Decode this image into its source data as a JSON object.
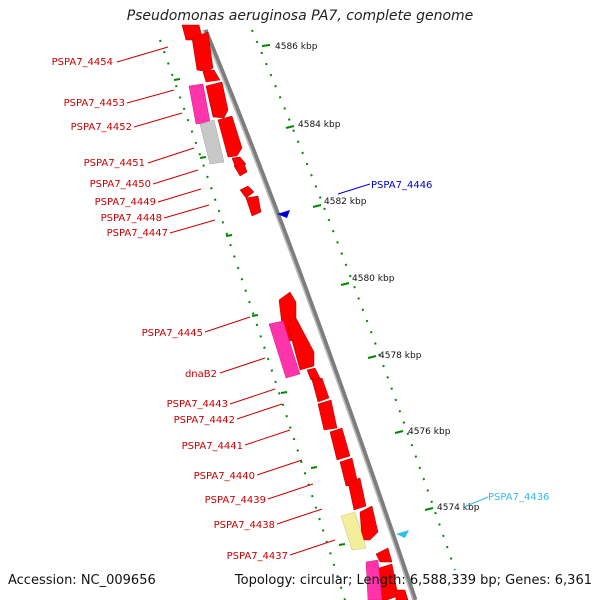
{
  "title": "Pseudomonas aeruginosa PA7, complete genome",
  "footer": {
    "accession": "Accession: NC_009656",
    "topology": "Topology: circular; Length: 6,588,339 bp; Genes: 6,361"
  },
  "colors": {
    "backbone": "#8a8a8a",
    "cds": "#ff0000",
    "gene_pink": "#ff33aa",
    "gene_grey": "#c8c8c8",
    "gene_yellow": "#f3ee9a",
    "tick": "#008800",
    "label_red": "#cc0000",
    "label_blue": "#0000cc",
    "label_cyan": "#33bbee"
  },
  "scale_ticks": [
    {
      "label": "4586 kbp"
    },
    {
      "label": "4584 kbp"
    },
    {
      "label": "4582 kbp"
    },
    {
      "label": "4580 kbp"
    },
    {
      "label": "4578 kbp"
    },
    {
      "label": "4576 kbp"
    },
    {
      "label": "4574 kbp"
    }
  ],
  "left_labels": [
    {
      "text": "PSPA7_4454"
    },
    {
      "text": "PSPA7_4453"
    },
    {
      "text": "PSPA7_4452"
    },
    {
      "text": "PSPA7_4451"
    },
    {
      "text": "PSPA7_4450"
    },
    {
      "text": "PSPA7_4449"
    },
    {
      "text": "PSPA7_4448"
    },
    {
      "text": "PSPA7_4447"
    },
    {
      "text": "PSPA7_4445"
    },
    {
      "text": "dnaB2"
    },
    {
      "text": "PSPA7_4443"
    },
    {
      "text": "PSPA7_4442"
    },
    {
      "text": "PSPA7_4441"
    },
    {
      "text": "PSPA7_4440"
    },
    {
      "text": "PSPA7_4439"
    },
    {
      "text": "PSPA7_4438"
    },
    {
      "text": "PSPA7_4437"
    }
  ],
  "right_labels": [
    {
      "text": "PSPA7_4446",
      "color": "#0000cc"
    },
    {
      "text": "PSPA7_4436",
      "color": "#33bbee"
    }
  ]
}
